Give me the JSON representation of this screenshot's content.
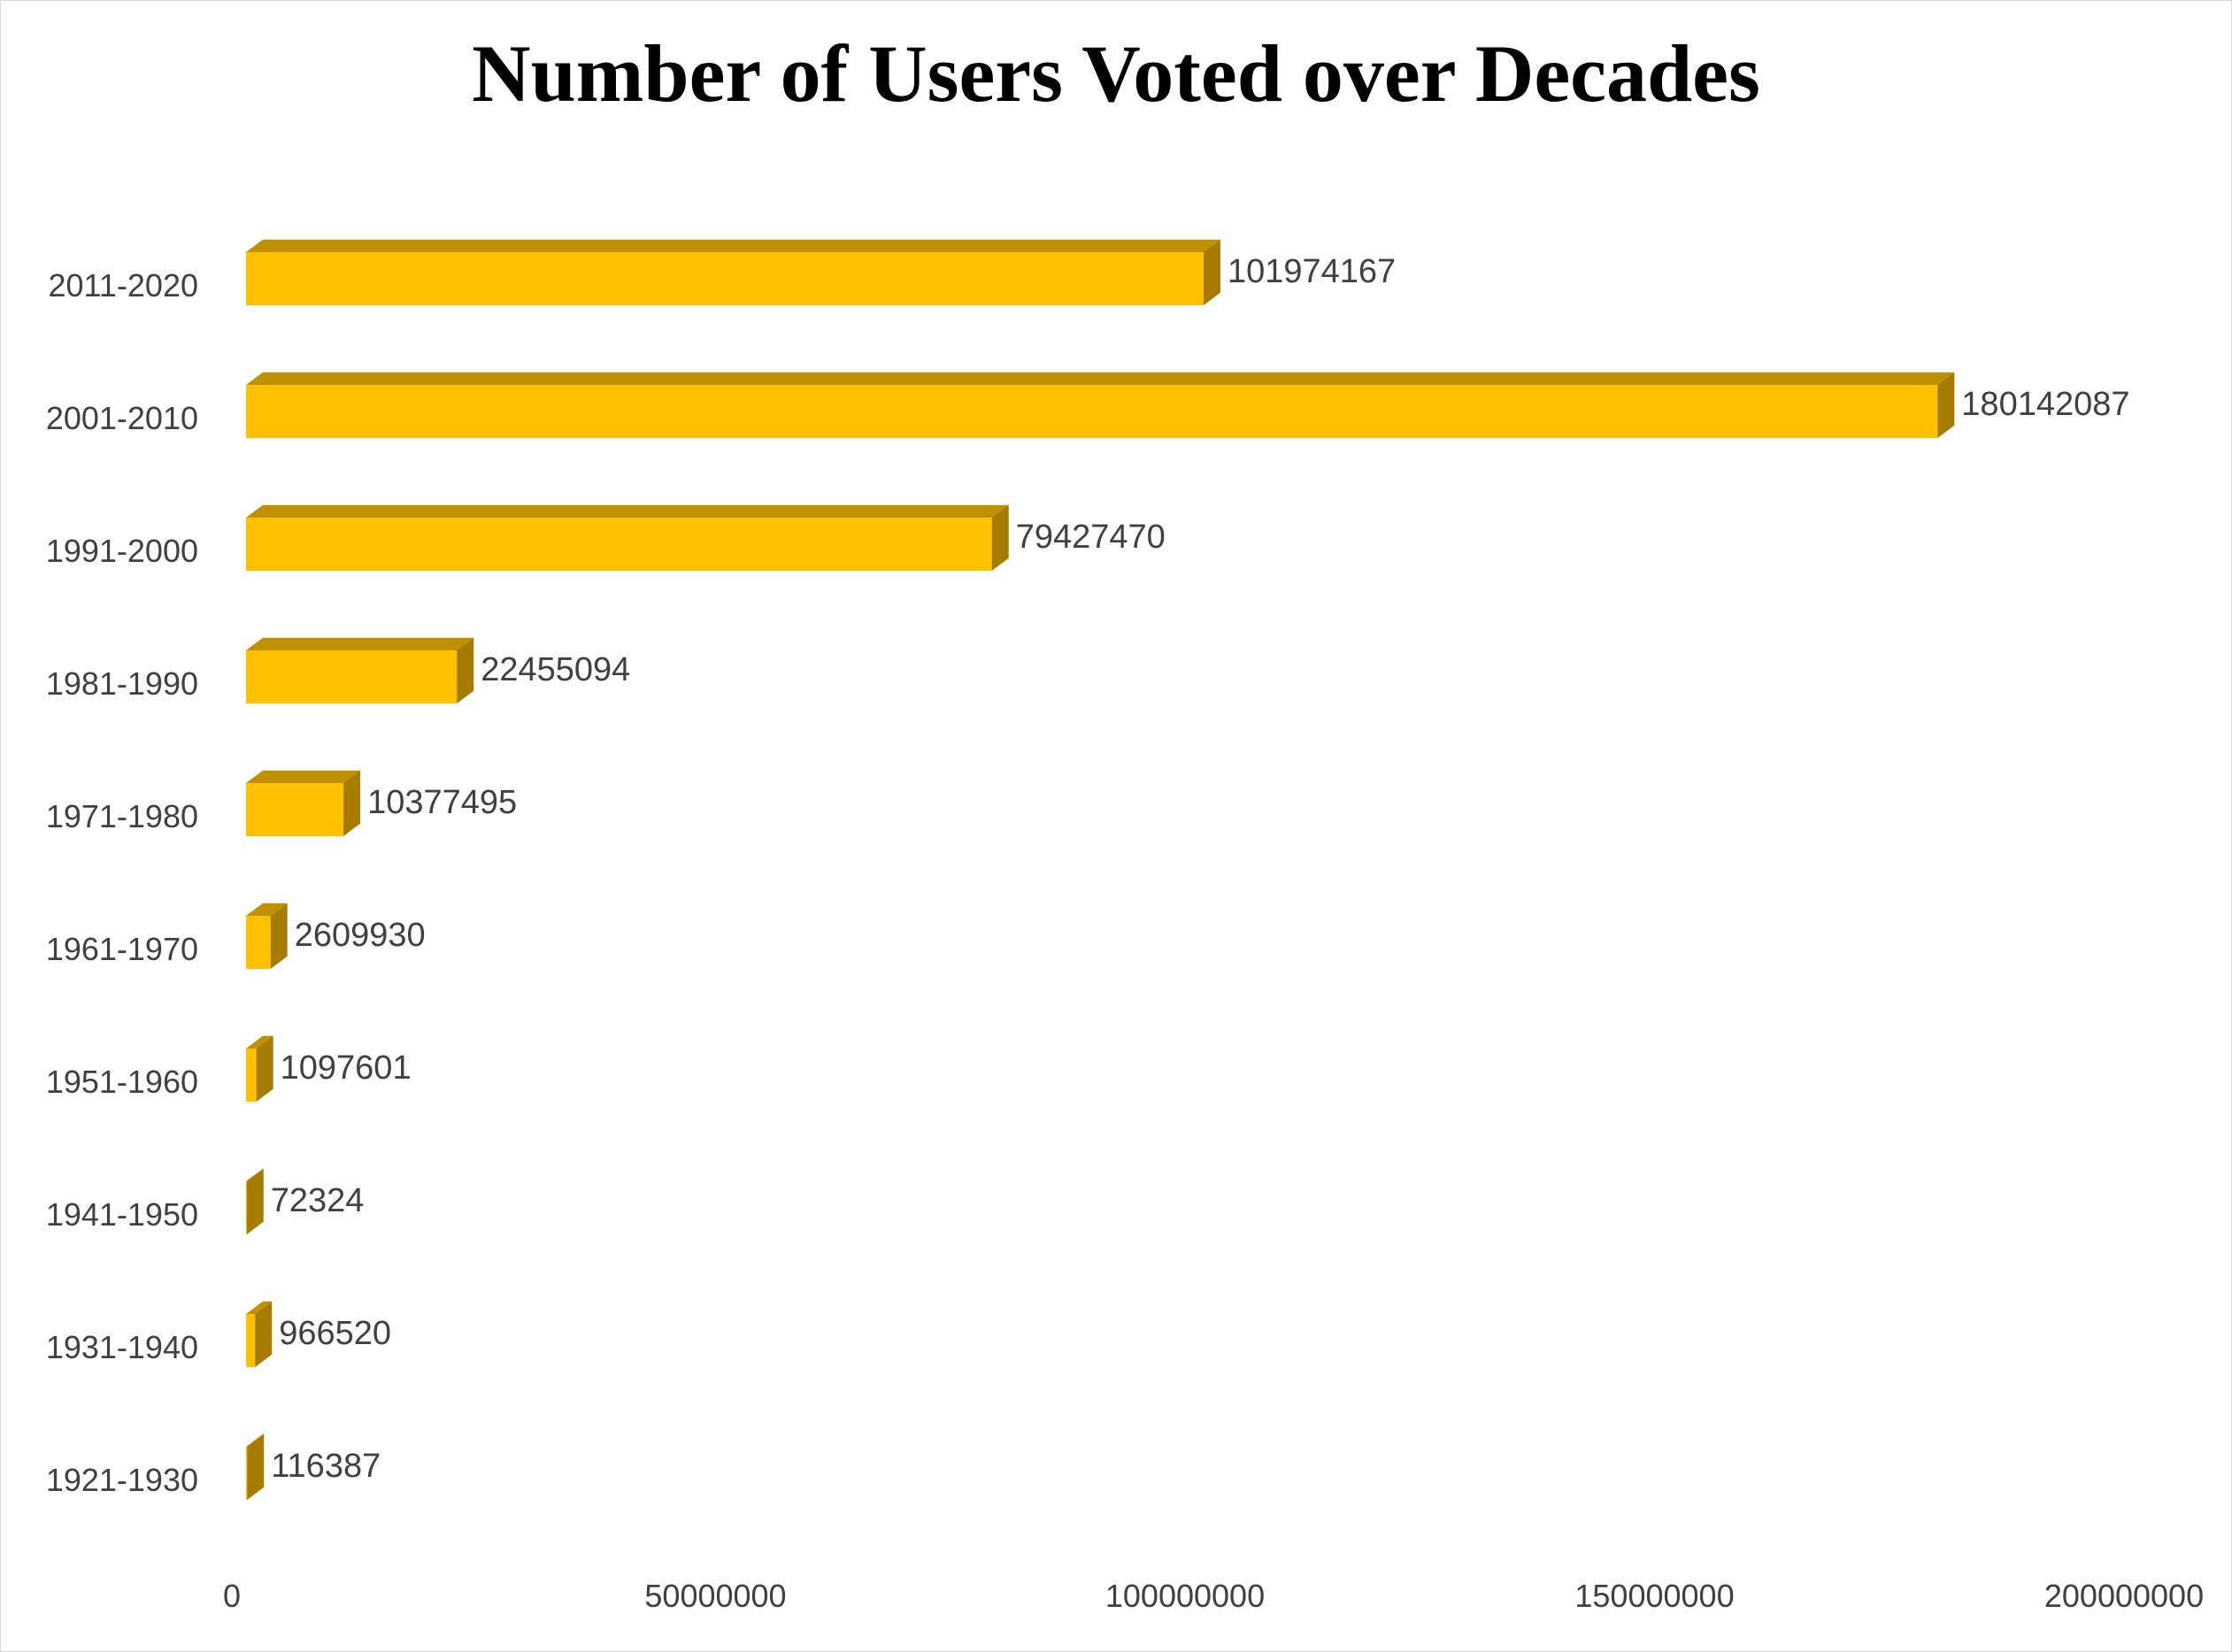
{
  "chart_data": {
    "type": "bar",
    "orientation": "horizontal",
    "title": "Number of Users Voted over Decades",
    "xlabel": "",
    "ylabel": "",
    "categories": [
      "1921-1930",
      "1931-1940",
      "1941-1950",
      "1951-1960",
      "1961-1970",
      "1971-1980",
      "1981-1990",
      "1991-2000",
      "2001-2010",
      "2011-2020"
    ],
    "values": [
      116387,
      966520,
      72324,
      1097601,
      2609930,
      10377495,
      22455094,
      79427470,
      180142087,
      101974167
    ],
    "data_labels": [
      "116387",
      "966520",
      "72324",
      "1097601",
      "2609930",
      "10377495",
      "22455094",
      "79427470",
      "180142087",
      "101974167"
    ],
    "xlim": [
      0,
      200000000
    ],
    "x_ticks": [
      "0",
      "50000000",
      "100000000",
      "150000000",
      "200000000"
    ],
    "grid": false,
    "legend": "none",
    "style": "3d",
    "colors": {
      "bar_front": "#FFC000",
      "bar_top": "#BF9000",
      "bar_side": "#A67C00"
    }
  }
}
